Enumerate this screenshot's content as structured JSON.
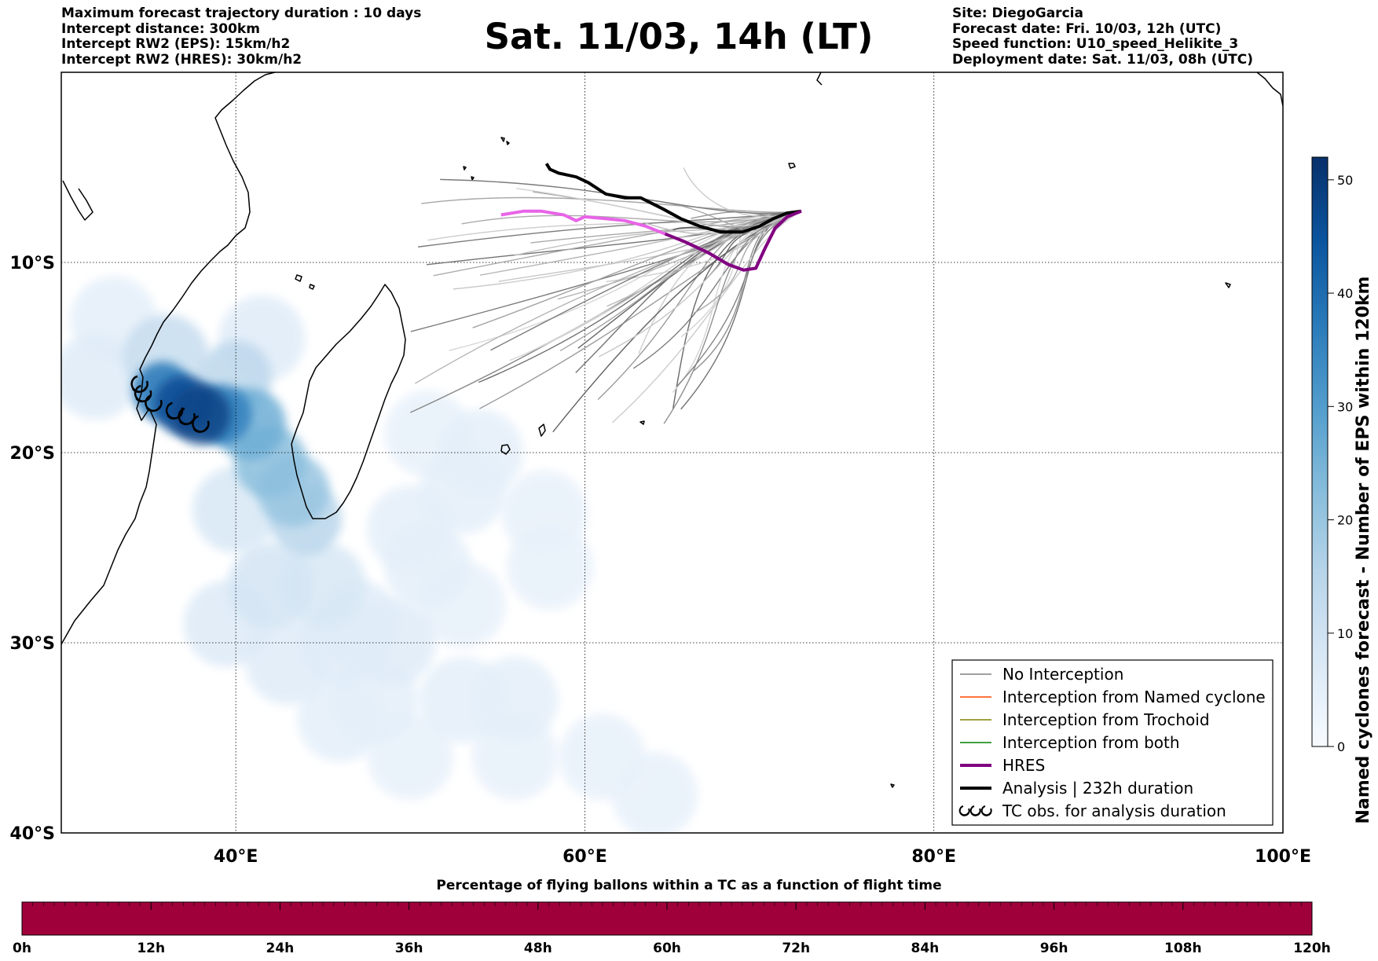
{
  "header_left": [
    "Maximum forecast trajectory duration : 10 days",
    "Intercept distance: 300km",
    "Intercept RW2 (EPS):  15km/h2",
    "Intercept RW2 (HRES): 30km/h2"
  ],
  "header_right": [
    "Site: DiegoGarcia",
    "Forecast date: Fri. 10/03, 12h (UTC)",
    "Speed function: U10_speed_Helikite_3",
    "Deployment date: Sat. 11/03, 08h (UTC)"
  ],
  "title": "Sat. 11/03, 14h (LT)",
  "map": {
    "lon_range": [
      30,
      100
    ],
    "lat_range": [
      -40,
      0
    ],
    "lon_ticks": [
      {
        "value": 40,
        "label": "40°E"
      },
      {
        "value": 60,
        "label": "60°E"
      },
      {
        "value": 80,
        "label": "80°E"
      },
      {
        "value": 100,
        "label": "100°E"
      }
    ],
    "lat_ticks": [
      {
        "value": -10,
        "label": "10°S"
      },
      {
        "value": -20,
        "label": "20°S"
      },
      {
        "value": -30,
        "label": "30°S"
      },
      {
        "value": -40,
        "label": "40°S"
      }
    ],
    "site": {
      "name": "DiegoGarcia",
      "lon": 72.4,
      "lat": -7.3
    },
    "analysis_track": [
      [
        72.4,
        -7.3
      ],
      [
        71.6,
        -7.4
      ],
      [
        70.8,
        -7.7
      ],
      [
        70,
        -8.1
      ],
      [
        69,
        -8.4
      ],
      [
        67.8,
        -8.4
      ],
      [
        66.6,
        -8.1
      ],
      [
        65.5,
        -7.7
      ],
      [
        64.5,
        -7.2
      ],
      [
        63.2,
        -6.6
      ],
      [
        62.3,
        -6.6
      ],
      [
        61.2,
        -6.4
      ],
      [
        60.2,
        -5.8
      ],
      [
        59.5,
        -5.5
      ],
      [
        58.5,
        -5.3
      ],
      [
        58,
        -5.1
      ],
      [
        57.8,
        -4.8
      ]
    ],
    "hres_track": [
      [
        72.4,
        -7.3
      ],
      [
        71.6,
        -7.6
      ],
      [
        70.9,
        -8.2
      ],
      [
        70.3,
        -9.3
      ],
      [
        69.8,
        -10.3
      ],
      [
        69.1,
        -10.4
      ],
      [
        68.2,
        -10.1
      ],
      [
        67.1,
        -9.5
      ],
      [
        65.7,
        -8.9
      ],
      [
        64.6,
        -8.5
      ],
      [
        63.5,
        -8.1
      ],
      [
        62.3,
        -7.8
      ],
      [
        61.2,
        -7.7
      ],
      [
        60,
        -7.6
      ],
      [
        59.5,
        -7.8
      ],
      [
        58.8,
        -7.5
      ],
      [
        57.5,
        -7.3
      ],
      [
        56.5,
        -7.3
      ],
      [
        55.2,
        -7.5
      ]
    ],
    "tc_obs": [
      [
        34.5,
        -16.4
      ],
      [
        34.7,
        -16.9
      ],
      [
        35.3,
        -17.4
      ],
      [
        36.5,
        -17.8
      ],
      [
        37.2,
        -18.1
      ],
      [
        38.0,
        -18.5
      ]
    ],
    "cyclone_density": [
      [
        38,
        -18,
        48
      ],
      [
        37,
        -17.5,
        46
      ],
      [
        35.8,
        -16.8,
        38
      ],
      [
        39.2,
        -18,
        36
      ],
      [
        40.8,
        -18.5,
        26
      ],
      [
        42,
        -20.5,
        22
      ],
      [
        43.3,
        -22,
        20
      ],
      [
        44,
        -23.5,
        15
      ],
      [
        40,
        -16,
        14
      ],
      [
        36,
        -15,
        12
      ],
      [
        32,
        -16,
        6
      ],
      [
        33,
        -13,
        5
      ],
      [
        41.5,
        -14,
        6
      ],
      [
        40,
        -23,
        8
      ],
      [
        42,
        -27,
        9
      ],
      [
        39.5,
        -29,
        7
      ],
      [
        45,
        -27,
        8
      ],
      [
        47,
        -29,
        6
      ],
      [
        46,
        -30,
        6
      ],
      [
        49,
        -30,
        6
      ],
      [
        43,
        -31,
        6
      ],
      [
        48,
        -33,
        5
      ],
      [
        53,
        -33,
        5
      ],
      [
        56,
        -33,
        5
      ],
      [
        50,
        -36,
        4
      ],
      [
        56,
        -36,
        4
      ],
      [
        61,
        -36,
        4
      ],
      [
        64,
        -38,
        4
      ],
      [
        46,
        -34,
        5
      ],
      [
        51,
        -26,
        5
      ],
      [
        53,
        -22,
        5
      ],
      [
        54,
        -20,
        5
      ],
      [
        51,
        -19,
        4
      ],
      [
        57.7,
        -23.2,
        4
      ],
      [
        58,
        -26,
        3
      ],
      [
        50,
        -24,
        5
      ],
      [
        53,
        -28,
        4
      ]
    ],
    "colorbar": {
      "label": "Named cyclones forecast - Number of EPS within 120km",
      "min": 0,
      "max": 52,
      "ticks": [
        0,
        10,
        20,
        30,
        40,
        50
      ],
      "colors": [
        "#f7fbff",
        "#dbe9f6",
        "#bad6eb",
        "#89bedc",
        "#539ecd",
        "#2b7bba",
        "#0b559f",
        "#08306b"
      ]
    }
  },
  "legend": [
    {
      "label": "No Interception",
      "color": "#808080",
      "width": 1.5,
      "kind": "line"
    },
    {
      "label": "Interception from Named cyclone",
      "color": "#ff4500",
      "width": 1.5,
      "kind": "line"
    },
    {
      "label": "Interception from Trochoid",
      "color": "#808000",
      "width": 1.5,
      "kind": "line"
    },
    {
      "label": "Interception from both",
      "color": "#008000",
      "width": 1.5,
      "kind": "line"
    },
    {
      "label": "HRES",
      "color": "#800080",
      "width": 4,
      "kind": "line"
    },
    {
      "label": "Analysis | 232h duration",
      "color": "#000000",
      "width": 4,
      "kind": "line"
    },
    {
      "label": "TC obs. for analysis duration",
      "color": "#000000",
      "width": 2,
      "kind": "cyclone-symbols"
    }
  ],
  "time_bar": {
    "title": "Percentage of flying ballons within a TC as a function of flight time",
    "fill_color": "#a0003a",
    "ticks": [
      "0h",
      "12h",
      "24h",
      "36h",
      "48h",
      "60h",
      "72h",
      "84h",
      "96h",
      "108h",
      "120h"
    ]
  }
}
